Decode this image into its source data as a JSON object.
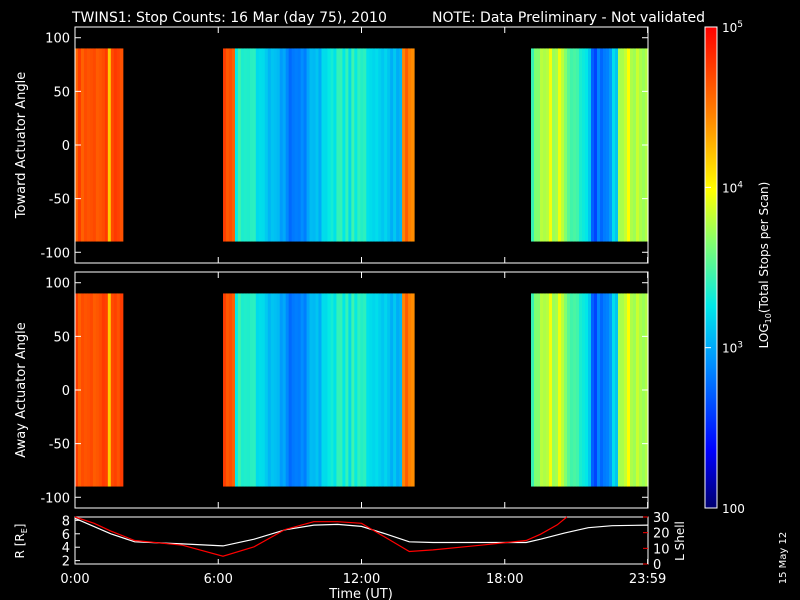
{
  "title": {
    "main": "TWINS1: Stop Counts: 16 Mar (day  75), 2010",
    "note": "NOTE: Data Preliminary - Not validated",
    "note_color": "#ff0000"
  },
  "date_stamp": "15 May 12",
  "chart_data": [
    {
      "type": "heatmap",
      "name": "toward",
      "ylabel": "Toward Actuator Angle",
      "ylim": [
        -110,
        110
      ],
      "yticks": [
        "100",
        "50",
        "0",
        "-50",
        "-100"
      ],
      "ytick_values": [
        100,
        50,
        0,
        -50,
        -100
      ],
      "xlim": [
        0,
        24
      ],
      "data_angle_range": [
        -90,
        90
      ],
      "data_intervals_hours": [
        [
          0,
          2.0
        ],
        [
          6.2,
          14.2
        ],
        [
          19.1,
          24
        ]
      ]
    },
    {
      "type": "heatmap",
      "name": "away",
      "ylabel": "Away Actuator Angle",
      "ylim": [
        -110,
        110
      ],
      "yticks": [
        "100",
        "50",
        "0",
        "-50",
        "-100"
      ],
      "ytick_values": [
        100,
        50,
        0,
        -50,
        -100
      ],
      "xlim": [
        0,
        24
      ],
      "data_angle_range": [
        -90,
        90
      ],
      "data_intervals_hours": [
        [
          0,
          2.0
        ],
        [
          6.2,
          14.2
        ],
        [
          19.1,
          24
        ]
      ]
    },
    {
      "type": "line",
      "name": "orbit",
      "ylabel_left": "R [R",
      "ylabel_left_sub": "E",
      "ylabel_left_end": "]",
      "ylabel_right": "L Shell",
      "ylim_left": [
        1.5,
        8.5
      ],
      "ylim_right": [
        0,
        30
      ],
      "yticks_left": [
        "8",
        "6",
        "4",
        "2"
      ],
      "ytick_left_values": [
        8,
        6,
        4,
        2
      ],
      "yticks_right": [
        "30",
        "20",
        "10",
        "0"
      ],
      "ytick_right_values": [
        30,
        20,
        10,
        0
      ],
      "series": [
        {
          "color": "#ffffff",
          "x": [
            0,
            1.5,
            2.5,
            4.5,
            6.2,
            7.5,
            8.8,
            10.0,
            11.0,
            12.0,
            13.0,
            14.0,
            15.0,
            17.0,
            18.9,
            19.5,
            20.5,
            21.5,
            22.5,
            23.99
          ],
          "y": [
            8.3,
            6.0,
            4.8,
            4.5,
            4.2,
            5.2,
            6.6,
            7.3,
            7.4,
            7.1,
            6.0,
            4.8,
            4.7,
            4.7,
            4.7,
            5.2,
            6.1,
            6.9,
            7.2,
            7.3
          ]
        }
      ],
      "series_right": [
        {
          "name": "L Shell",
          "color": "#ff0000",
          "x": [
            0,
            0.8,
            1.5,
            2.5,
            4.5,
            6.2,
            7.5,
            8.8,
            10.0,
            11.0,
            12.0,
            13.0,
            14.0,
            15.0,
            17.0,
            18.9,
            19.5,
            20.2,
            20.6
          ],
          "y": [
            30,
            26,
            21,
            15,
            12,
            5,
            11,
            22,
            27,
            27,
            26,
            17,
            8,
            9,
            12,
            15,
            19,
            25,
            30
          ]
        }
      ],
      "xticks": [
        "0:00",
        "6:00",
        "12:00",
        "18:00",
        "23:59"
      ],
      "xtick_values": [
        0,
        6,
        12,
        18,
        23.983
      ],
      "xlabel": "Time (UT)"
    }
  ],
  "colorbar": {
    "ylabel_pre": "LOG",
    "ylabel_sub": "10",
    "ylabel_post": "(Total Stops per Scan)",
    "range": [
      100,
      100000
    ],
    "ticks": [
      {
        "base": "10",
        "exp": "5",
        "value": 100000
      },
      {
        "base": "10",
        "exp": "4",
        "value": 10000
      },
      {
        "base": "10",
        "exp": "3",
        "value": 1000
      },
      {
        "base": "",
        "exp": "",
        "label": "100",
        "value": 100
      }
    ]
  }
}
